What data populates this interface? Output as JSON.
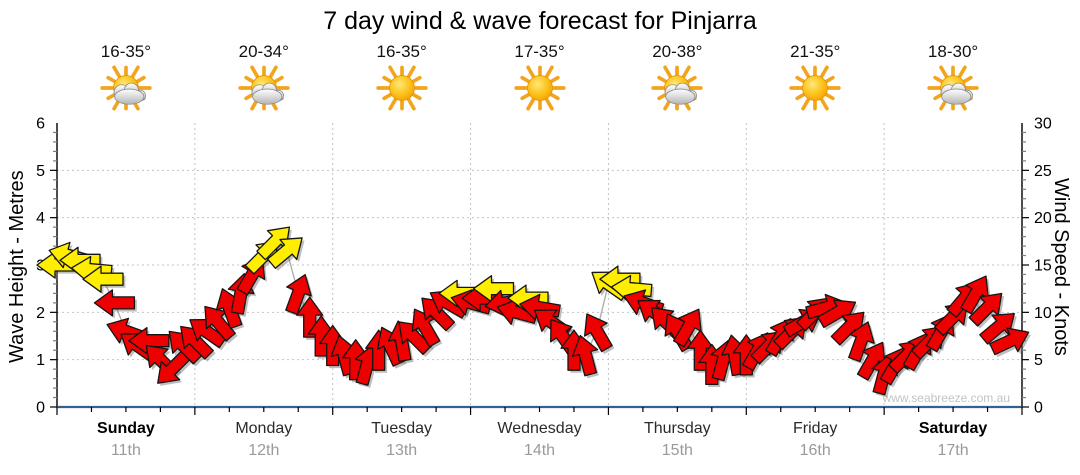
{
  "title": "7 day wind & wave forecast for Pinjarra",
  "watermark": "www.seabreeze.com.au",
  "days": [
    {
      "name": "Sunday",
      "date": "11th",
      "temp": "16-35°",
      "icon": "sun-cloud",
      "bold": true
    },
    {
      "name": "Monday",
      "date": "12th",
      "temp": "20-34°",
      "icon": "sun-cloud",
      "bold": false
    },
    {
      "name": "Tuesday",
      "date": "13th",
      "temp": "16-35°",
      "icon": "sun",
      "bold": false
    },
    {
      "name": "Wednesday",
      "date": "14th",
      "temp": "17-35°",
      "icon": "sun",
      "bold": false
    },
    {
      "name": "Thursday",
      "date": "15th",
      "temp": "20-38°",
      "icon": "sun-cloud",
      "bold": false
    },
    {
      "name": "Friday",
      "date": "16th",
      "temp": "21-35°",
      "icon": "sun",
      "bold": false
    },
    {
      "name": "Saturday",
      "date": "17th",
      "temp": "18-30°",
      "icon": "sun-cloud",
      "bold": true
    }
  ],
  "chart_data": {
    "type": "wind_arrows_line",
    "title": "7 day wind & wave forecast for Pinjarra",
    "y_left": {
      "label": "Wave Height - Metres",
      "min": 0,
      "max": 6,
      "tick_step": 1,
      "ticks": [
        0,
        1,
        2,
        3,
        4,
        5,
        6
      ]
    },
    "y_right": {
      "label": "Wind Speed - Knots",
      "min": 0,
      "max": 30,
      "tick_step": 5,
      "ticks": [
        0,
        5,
        10,
        15,
        20,
        25,
        30
      ]
    },
    "x": {
      "unit": "hours",
      "min": 0,
      "max": 168,
      "days": 7,
      "grid_at_day_bounds": true
    },
    "legend": "none",
    "grid": "dotted horizontal at each metre, dotted vertical at day boundaries",
    "colors": {
      "arrow_red": "#ee0000",
      "arrow_yellow": "#ffee00",
      "arrow_outline": "#151515",
      "line": "#aeaeae",
      "grid": "#c3c3c3",
      "bottom_axis": "#33608f",
      "axis": "#000000"
    },
    "point_fields": [
      "hour",
      "wind_knots",
      "arrow_rotation_deg_cw_0_east",
      "color_r_or_y"
    ],
    "points": [
      [
        0,
        15,
        180,
        "y"
      ],
      [
        2,
        16,
        195,
        "y"
      ],
      [
        4,
        15.5,
        180,
        "y"
      ],
      [
        6,
        14.5,
        185,
        "y"
      ],
      [
        8,
        13.5,
        180,
        "y"
      ],
      [
        10,
        11,
        180,
        "r"
      ],
      [
        12,
        8,
        200,
        "r"
      ],
      [
        14,
        6.5,
        215,
        "r"
      ],
      [
        16,
        7,
        180,
        "r"
      ],
      [
        18,
        5,
        225,
        "r"
      ],
      [
        20,
        4,
        135,
        "r"
      ],
      [
        22,
        6.5,
        225,
        "r"
      ],
      [
        24,
        7,
        225,
        "r"
      ],
      [
        26,
        8,
        215,
        "r"
      ],
      [
        28,
        9,
        230,
        "r"
      ],
      [
        30,
        10.5,
        250,
        "r"
      ],
      [
        32,
        12,
        280,
        "r"
      ],
      [
        34,
        14,
        300,
        "r"
      ],
      [
        36,
        16,
        315,
        "y"
      ],
      [
        38,
        17.5,
        315,
        "y"
      ],
      [
        40,
        16.5,
        320,
        "y"
      ],
      [
        42,
        12,
        290,
        "r"
      ],
      [
        44,
        9.5,
        270,
        "r"
      ],
      [
        46,
        7.5,
        270,
        "r"
      ],
      [
        48,
        6.5,
        270,
        "r"
      ],
      [
        50,
        5.5,
        255,
        "r"
      ],
      [
        52,
        5,
        270,
        "r"
      ],
      [
        54,
        4.5,
        285,
        "r"
      ],
      [
        56,
        6,
        270,
        "r"
      ],
      [
        58,
        6.5,
        245,
        "r"
      ],
      [
        60,
        7,
        260,
        "r"
      ],
      [
        62,
        7.5,
        225,
        "r"
      ],
      [
        64,
        8.5,
        240,
        "r"
      ],
      [
        66,
        10,
        225,
        "r"
      ],
      [
        68,
        11,
        210,
        "r"
      ],
      [
        70,
        12,
        180,
        "y"
      ],
      [
        72,
        11,
        195,
        "r"
      ],
      [
        74,
        11.5,
        180,
        "r"
      ],
      [
        76,
        12.5,
        180,
        "y"
      ],
      [
        78,
        11,
        170,
        "r"
      ],
      [
        80,
        10,
        195,
        "r"
      ],
      [
        82,
        11.5,
        180,
        "y"
      ],
      [
        84,
        10.5,
        190,
        "r"
      ],
      [
        86,
        9,
        215,
        "r"
      ],
      [
        88,
        7.5,
        235,
        "r"
      ],
      [
        90,
        6,
        270,
        "r"
      ],
      [
        92,
        5.5,
        255,
        "r"
      ],
      [
        94,
        8,
        240,
        "r"
      ],
      [
        96,
        13,
        215,
        "y"
      ],
      [
        98,
        13.5,
        180,
        "y"
      ],
      [
        100,
        12.5,
        185,
        "y"
      ],
      [
        102,
        11,
        200,
        "r"
      ],
      [
        104,
        10,
        215,
        "r"
      ],
      [
        106,
        9,
        225,
        "r"
      ],
      [
        108,
        8,
        240,
        "r"
      ],
      [
        110,
        8.5,
        300,
        "r"
      ],
      [
        112,
        6,
        270,
        "r"
      ],
      [
        114,
        4.5,
        270,
        "r"
      ],
      [
        116,
        5,
        285,
        "r"
      ],
      [
        118,
        5.5,
        260,
        "r"
      ],
      [
        120,
        5.5,
        270,
        "r"
      ],
      [
        122,
        6,
        300,
        "r"
      ],
      [
        124,
        6.5,
        315,
        "r"
      ],
      [
        126,
        7.5,
        300,
        "r"
      ],
      [
        128,
        8,
        315,
        "r"
      ],
      [
        130,
        9,
        330,
        "r"
      ],
      [
        132,
        10,
        315,
        "r"
      ],
      [
        134,
        10.5,
        345,
        "r"
      ],
      [
        136,
        10,
        330,
        "r"
      ],
      [
        138,
        8.5,
        315,
        "r"
      ],
      [
        140,
        7,
        290,
        "r"
      ],
      [
        142,
        5,
        300,
        "r"
      ],
      [
        144,
        3.5,
        285,
        "r"
      ],
      [
        146,
        4.5,
        300,
        "r"
      ],
      [
        148,
        5.5,
        315,
        "r"
      ],
      [
        150,
        6,
        300,
        "r"
      ],
      [
        152,
        7,
        315,
        "r"
      ],
      [
        154,
        8,
        300,
        "r"
      ],
      [
        156,
        9.5,
        315,
        "r"
      ],
      [
        158,
        11.5,
        310,
        "r"
      ],
      [
        160,
        12,
        300,
        "r"
      ],
      [
        162,
        10.5,
        315,
        "r"
      ],
      [
        164,
        8.5,
        320,
        "r"
      ],
      [
        166,
        7,
        335,
        "r"
      ]
    ]
  }
}
